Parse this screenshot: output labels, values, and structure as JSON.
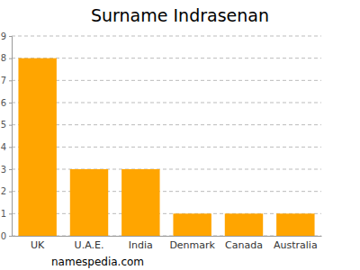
{
  "chart_data": {
    "type": "bar",
    "title": "Surname Indrasenan",
    "categories": [
      "UK",
      "U.A.E.",
      "India",
      "Denmark",
      "Canada",
      "Australia"
    ],
    "values": [
      8,
      3,
      3,
      1,
      1,
      1
    ],
    "color": "#ffa500",
    "ylim": [
      0,
      9
    ],
    "yticks": [
      0,
      1,
      2,
      3,
      4,
      5,
      6,
      7,
      8,
      9
    ],
    "grid": true,
    "annotations": [
      "namespedia.com"
    ]
  }
}
